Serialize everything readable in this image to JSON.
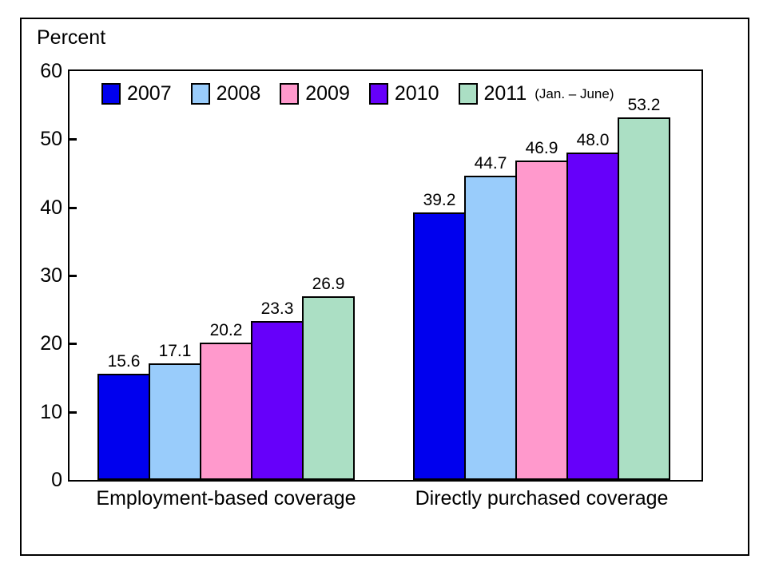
{
  "chart_data": {
    "type": "bar",
    "title": "",
    "ylabel": "Percent",
    "xlabel": "",
    "ylim": [
      0,
      60
    ],
    "yticks": [
      0,
      10,
      20,
      30,
      40,
      50,
      60
    ],
    "grid": false,
    "legend_position": "top-inside",
    "value_label_decimals": 1,
    "bar_border_color": "#000000",
    "categories": [
      "Employment-based coverage",
      "Directly purchased coverage"
    ],
    "series": [
      {
        "name": "2007",
        "name_suffix": "",
        "color": "#0000EE",
        "values": [
          15.6,
          39.2
        ]
      },
      {
        "name": "2008",
        "name_suffix": "",
        "color": "#99CCFB",
        "values": [
          17.1,
          44.7
        ]
      },
      {
        "name": "2009",
        "name_suffix": "",
        "color": "#FF99CC",
        "values": [
          20.2,
          46.9
        ]
      },
      {
        "name": "2010",
        "name_suffix": "",
        "color": "#6600FA",
        "values": [
          23.3,
          48.0
        ]
      },
      {
        "name": "2011",
        "name_suffix": "(Jan. – June)",
        "color": "#ABDFC4",
        "values": [
          26.9,
          53.2
        ]
      }
    ]
  }
}
